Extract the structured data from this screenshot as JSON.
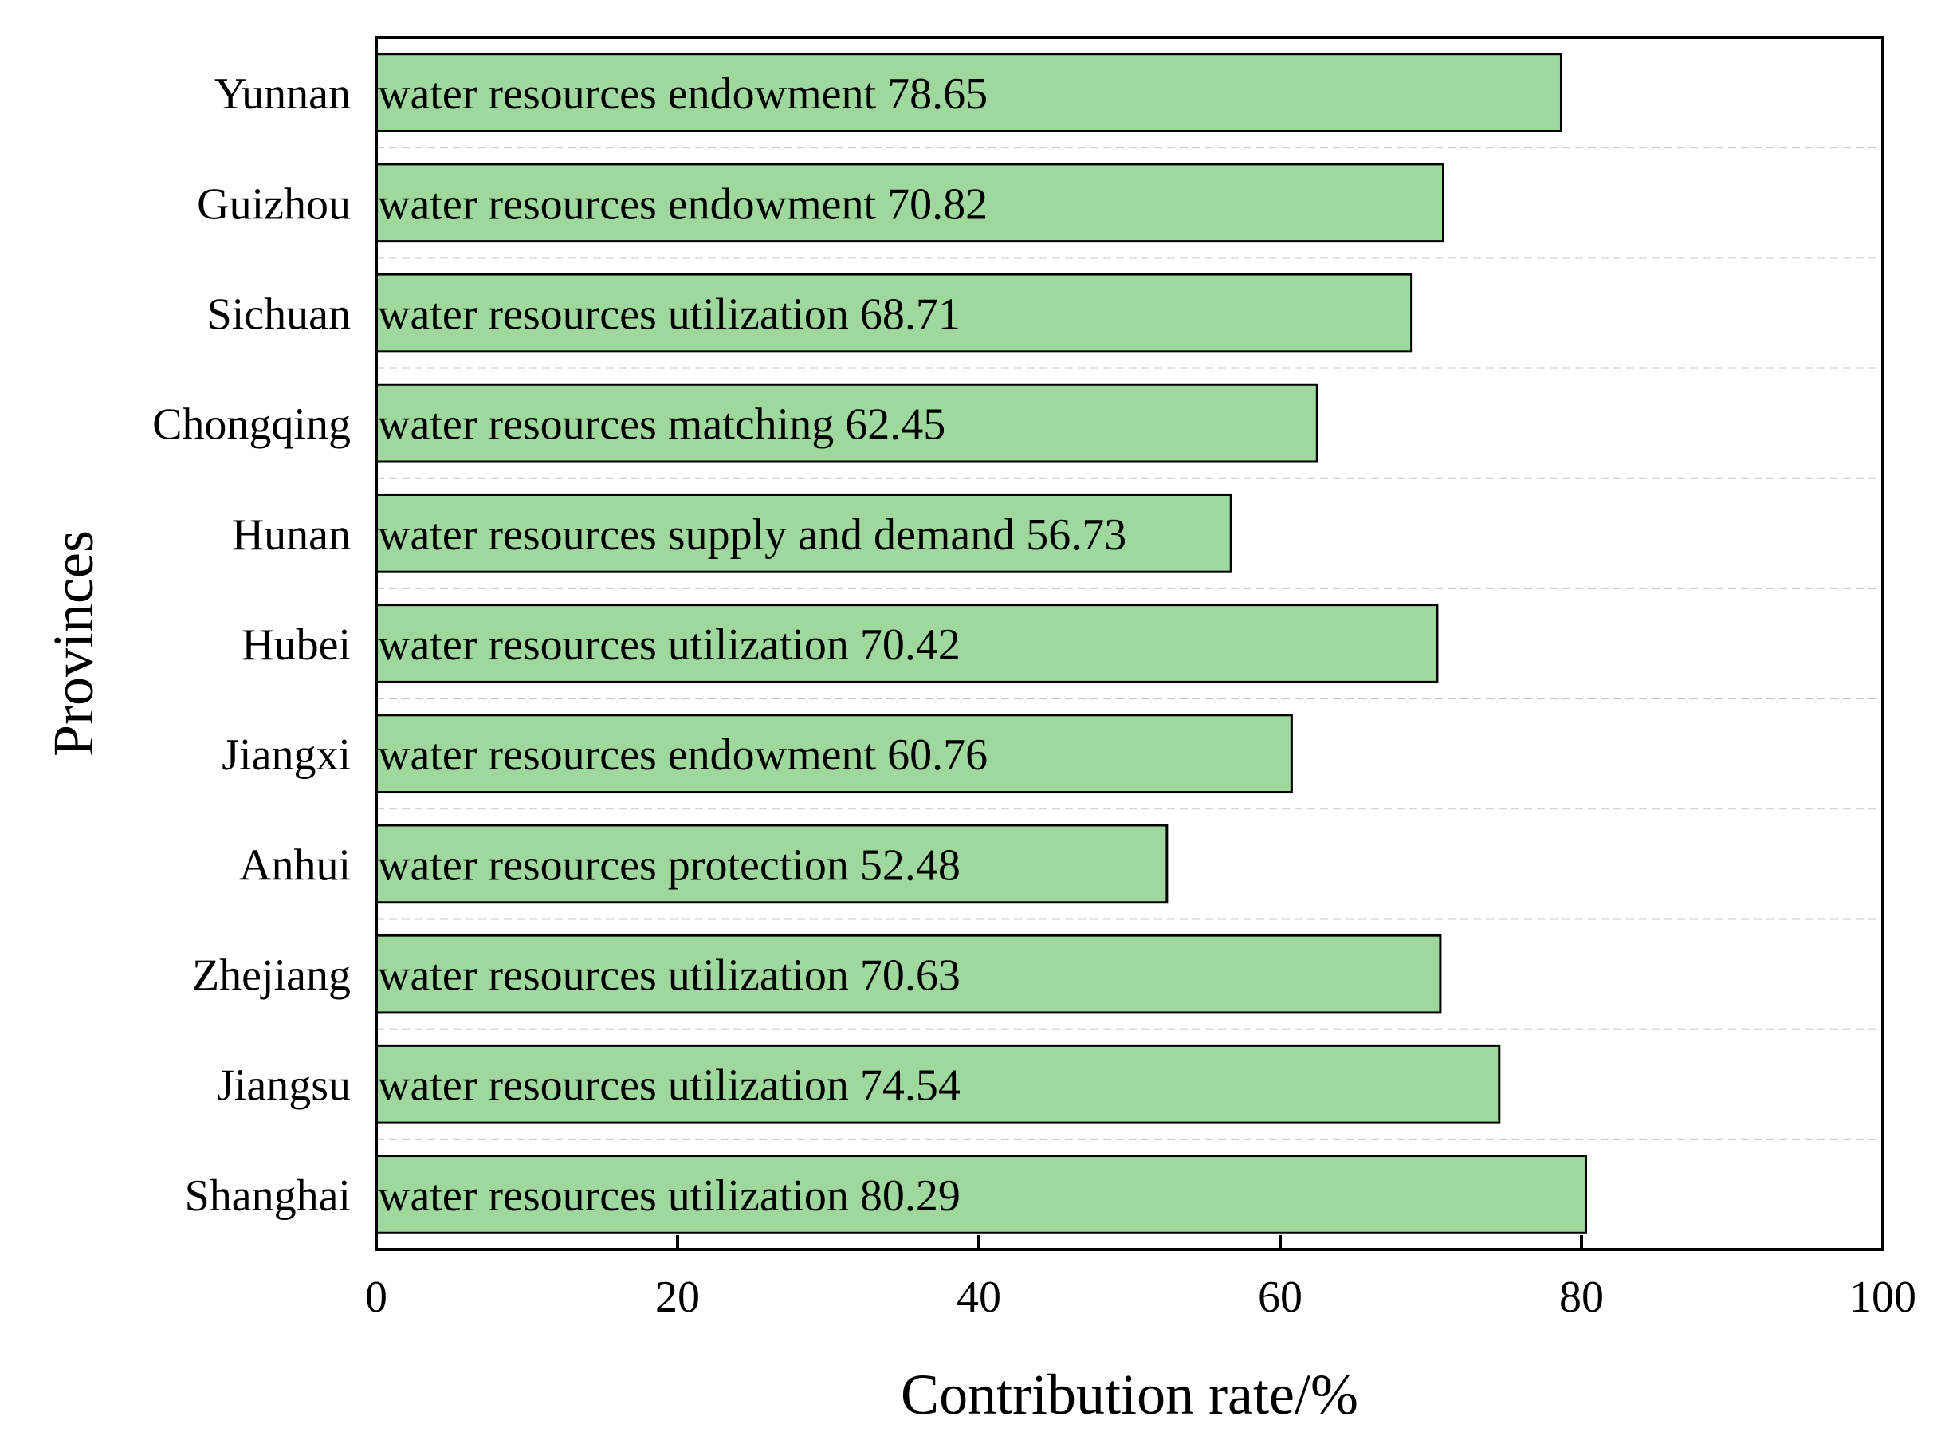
{
  "chart_data": {
    "type": "bar",
    "orientation": "horizontal",
    "title": "",
    "xlabel": "Contribution rate/%",
    "ylabel": "Provinces",
    "xlim": [
      0,
      100
    ],
    "xticks": [
      "0",
      "20",
      "40",
      "60",
      "80",
      "100"
    ],
    "xtick_values": [
      0,
      20,
      40,
      60,
      80,
      100
    ],
    "grid": "horizontal dashed",
    "bar_color": "#9fd89d",
    "categories": [
      "Yunnan",
      "Guizhou",
      "Sichuan",
      "Chongqing",
      "Hunan",
      "Hubei",
      "Jiangxi",
      "Anhui",
      "Zhejiang",
      "Jiangsu",
      "Shanghai"
    ],
    "values": [
      78.65,
      70.82,
      68.71,
      62.45,
      56.73,
      70.42,
      60.76,
      52.48,
      70.63,
      74.54,
      80.29
    ],
    "bar_labels": [
      "water resources endowment 78.65",
      "water resources endowment 70.82",
      "water resources utilization 68.71",
      "water resources matching 62.45",
      "water resources supply and demand 56.73",
      "water resources utilization 70.42",
      "water resources endowment 60.76",
      "water resources protection 52.48",
      "water resources utilization 70.63",
      "water resources utilization 74.54",
      "water resources utilization 80.29"
    ]
  }
}
